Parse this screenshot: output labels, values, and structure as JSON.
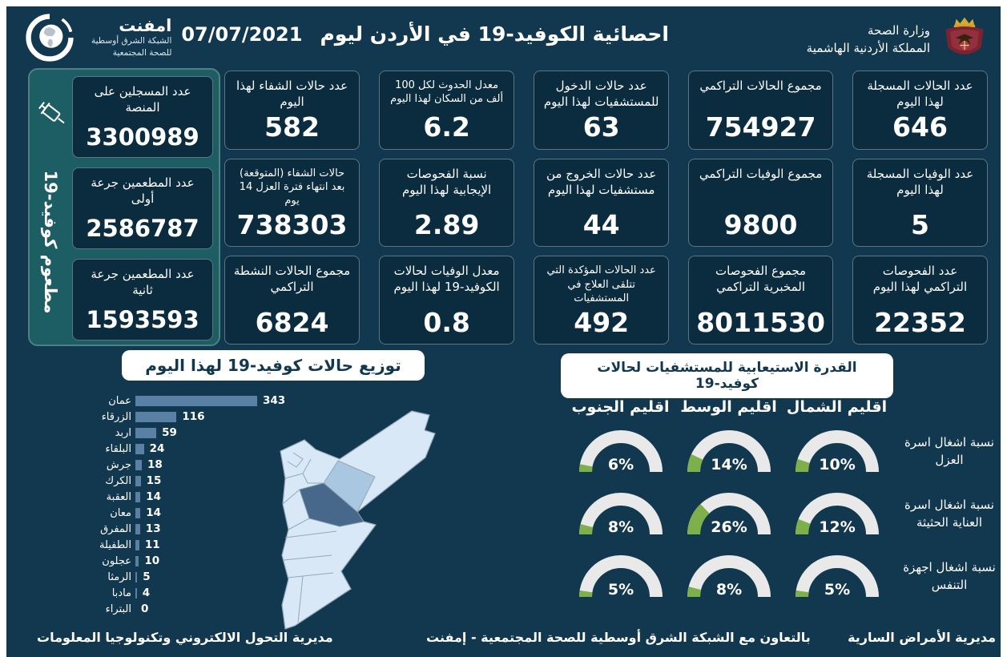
{
  "header": {
    "title": "احصائية الكوفيد-19 في الأردن ليوم",
    "date": "07/07/2021",
    "ministry": {
      "line1": "وزارة الصحة",
      "line2": "المملكة الأردنية الهاشمية"
    },
    "logo": {
      "name": "امفنت",
      "line1": "الشبكة الشرق أوسطية",
      "line2": "للصحة المجتمعية"
    }
  },
  "icons": {
    "logo": "globe-swoosh",
    "ministry": "jordan-coat-of-arms",
    "vaccination": "syringe"
  },
  "vaccination": {
    "side_label": "مطعوم كوفيد-19",
    "cards": [
      {
        "label": "عدد المسجلين على المنصة",
        "value": "3300989"
      },
      {
        "label": "عدد المطعمين جرعة أولى",
        "value": "2586787"
      },
      {
        "label": "عدد المطعمين جرعة ثانية",
        "value": "1593593"
      }
    ]
  },
  "stats": [
    {
      "label": "عدد الحالات المسجلة لهذا اليوم",
      "value": "646"
    },
    {
      "label": "مجموع الحالات التراكمي",
      "value": "754927"
    },
    {
      "label": "عدد حالات الدخول للمستشفيات لهذا اليوم",
      "value": "63"
    },
    {
      "label": "معدل الحدوث لكل 100 ألف من السكان لهذا اليوم",
      "value": "6.2"
    },
    {
      "label": "عدد حالات الشفاء لهذا اليوم",
      "value": "582"
    },
    {
      "label": "عدد الوفيات المسجلة لهذا اليوم",
      "value": "5"
    },
    {
      "label": "مجموع الوفيات التراكمي",
      "value": "9800"
    },
    {
      "label": "عدد حالات الخروج من مستشفيات لهذا اليوم",
      "value": "44"
    },
    {
      "label": "نسبة الفحوصات الإيجابية لهذا اليوم",
      "value": "2.89"
    },
    {
      "label": "حالات الشفاء (المتوقعة) بعد انتهاء فترة العزل 14 يوم",
      "value": "738303"
    },
    {
      "label": "عدد الفحوصات التراكمي لهذا اليوم",
      "value": "22352"
    },
    {
      "label": "مجموع الفحوصات المخبرية التراكمي",
      "value": "8011530"
    },
    {
      "label": "عدد الحالات المؤكدة التي تتلقى العلاج في المستشفيات",
      "value": "492"
    },
    {
      "label": "معدل الوفيات لحالات الكوفيد-19 لهذا اليوم",
      "value": "0.8"
    },
    {
      "label": "مجموع الحالات النشطة التراكمي",
      "value": "6824"
    }
  ],
  "chart_data": [
    {
      "type": "bar",
      "orientation": "horizontal",
      "title": "توزيع حالات كوفيد-19 لهذا اليوم",
      "categories": [
        "عمان",
        "الزرقاء",
        "اربد",
        "البلقاء",
        "جرش",
        "الكرك",
        "العقبة",
        "معان",
        "المفرق",
        "الطفيلة",
        "عجلون",
        "الرمثا",
        "مادبا",
        "البتراء"
      ],
      "values": [
        343,
        116,
        59,
        24,
        18,
        15,
        14,
        14,
        13,
        11,
        10,
        5,
        4,
        0
      ],
      "xlim": [
        0,
        343
      ],
      "bar_color": "#5b80a6",
      "data_labels": true
    },
    {
      "type": "gauge",
      "title": "القدرة الاستيعابية للمستشفيات لحالات كوفيد-19",
      "unit": "%",
      "regions": [
        "اقليم الشمال",
        "اقليم الوسط",
        "اقليم الجنوب"
      ],
      "rows": [
        {
          "label": "نسبة اشغال اسرة العزل",
          "values": [
            10,
            14,
            6
          ]
        },
        {
          "label": "نسبة اشغال اسرة العناية الحثيثة",
          "values": [
            12,
            26,
            8
          ]
        },
        {
          "label": "نسبة اشغال اجهزة التنفس",
          "values": [
            5,
            8,
            5
          ]
        }
      ],
      "gauge_max": 100,
      "fill_color": "#7db04a",
      "track_color": "#e9e9e9"
    }
  ],
  "footer": {
    "right": "مديرية الأمراض السارية",
    "center": "بالتعاون مع الشبكة الشرق أوسطية للصحة المجتمعية - إمفنت",
    "left": "مديرية التحول الالكتروني وتكنولوجيا المعلومات"
  },
  "colors": {
    "background": "#12384f",
    "card": "#0b2c3f",
    "teal": "#1d5d64",
    "bar": "#5b80a6",
    "green": "#7db04a",
    "gauge_track": "#e9e9e9",
    "map_light": "#d8e8f6",
    "map_medium": "#a9c7e1",
    "map_dark": "#47688b",
    "text": "#ffffff"
  }
}
